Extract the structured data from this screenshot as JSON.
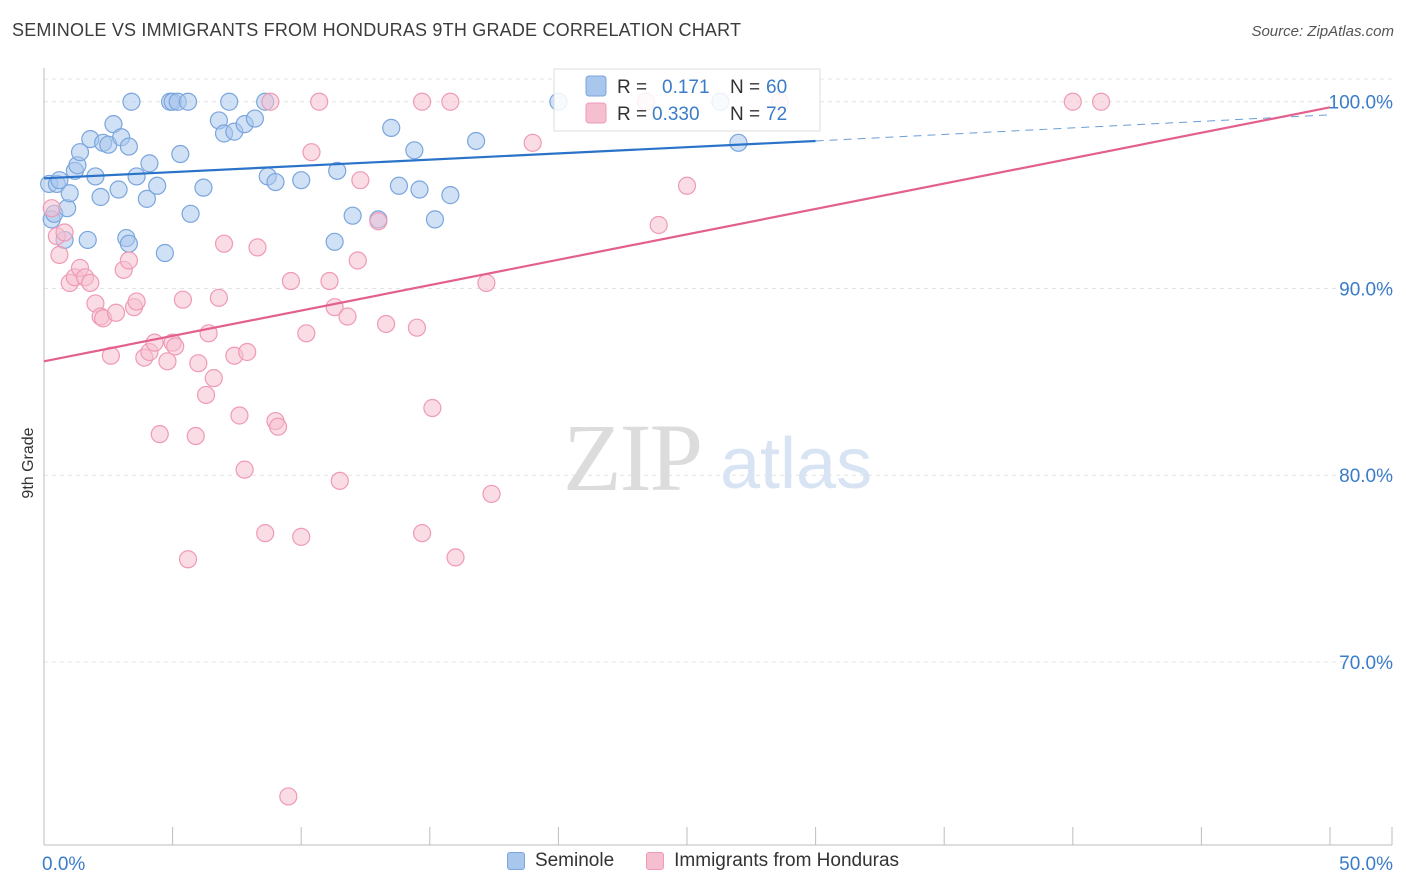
{
  "header": {
    "title": "SEMINOLE VS IMMIGRANTS FROM HONDURAS 9TH GRADE CORRELATION CHART",
    "source": "Source: ZipAtlas.com"
  },
  "watermark": {
    "zip": "ZIP",
    "atlas": "atlas"
  },
  "legend": {
    "r_label": "R =",
    "n_label": "N =",
    "entries": [
      {
        "r": "0.171",
        "n": "60"
      },
      {
        "r": "0.330",
        "n": "72"
      }
    ]
  },
  "bottom_legend": [
    "Seminole",
    "Immigrants from Honduras"
  ],
  "colors": {
    "seminole_fill": "#a9c6ec",
    "seminole_stroke": "#7aa6dd",
    "seminole_line": "#2a73c8",
    "honduras_fill": "#f6bfd0",
    "honduras_stroke": "#ef9ab6",
    "honduras_line": "#e3608d",
    "value_text": "#3b7cc9",
    "grid": "#e4e4e4",
    "axis": "#bdbdbd"
  },
  "chart_data": {
    "type": "scatter",
    "title": "SEMINOLE VS IMMIGRANTS FROM HONDURAS 9TH GRADE CORRELATION CHART",
    "xlabel": "",
    "ylabel": "9th Grade",
    "xlim": [
      0,
      50
    ],
    "ylim": [
      60.2,
      101.7
    ],
    "x_tick_labels": [
      "0.0%",
      "50.0%"
    ],
    "y_ticks": [
      70,
      80,
      90,
      100
    ],
    "y_tick_labels": [
      "70.0%",
      "80.0%",
      "90.0%",
      "100.0%"
    ],
    "legend_position": "top-center",
    "series": [
      {
        "name": "Seminole",
        "r": 0.171,
        "n": 60,
        "trend": {
          "x1": 0,
          "y1": 95.9,
          "x2": 30,
          "y2": 97.9,
          "dash_to_x": 50,
          "dash_to_y": 99.3
        },
        "points": [
          [
            0.2,
            95.6
          ],
          [
            0.3,
            93.7
          ],
          [
            0.4,
            94.0
          ],
          [
            0.5,
            95.6
          ],
          [
            0.6,
            95.8
          ],
          [
            0.8,
            92.6
          ],
          [
            0.9,
            94.3
          ],
          [
            1.0,
            95.1
          ],
          [
            1.2,
            96.3
          ],
          [
            1.3,
            96.6
          ],
          [
            1.4,
            97.3
          ],
          [
            1.7,
            92.6
          ],
          [
            1.8,
            98.0
          ],
          [
            2.0,
            96.0
          ],
          [
            2.2,
            94.9
          ],
          [
            2.3,
            97.8
          ],
          [
            2.5,
            97.7
          ],
          [
            2.7,
            98.8
          ],
          [
            2.9,
            95.3
          ],
          [
            3.0,
            98.1
          ],
          [
            3.2,
            92.7
          ],
          [
            3.3,
            92.4
          ],
          [
            3.3,
            97.6
          ],
          [
            3.4,
            100.0
          ],
          [
            3.6,
            96.0
          ],
          [
            4.0,
            94.8
          ],
          [
            4.1,
            96.7
          ],
          [
            4.4,
            95.5
          ],
          [
            4.7,
            91.9
          ],
          [
            4.9,
            100.0
          ],
          [
            5.0,
            100.0
          ],
          [
            5.2,
            100.0
          ],
          [
            5.3,
            97.2
          ],
          [
            5.6,
            100.0
          ],
          [
            5.7,
            94.0
          ],
          [
            6.2,
            95.4
          ],
          [
            6.8,
            99.0
          ],
          [
            7.0,
            98.3
          ],
          [
            7.2,
            100.0
          ],
          [
            7.4,
            98.4
          ],
          [
            7.8,
            98.8
          ],
          [
            8.2,
            99.1
          ],
          [
            8.6,
            100.0
          ],
          [
            8.7,
            96.0
          ],
          [
            9.0,
            95.7
          ],
          [
            10.0,
            95.8
          ],
          [
            11.3,
            92.5
          ],
          [
            11.4,
            96.3
          ],
          [
            12.0,
            93.9
          ],
          [
            13.0,
            93.7
          ],
          [
            13.5,
            98.6
          ],
          [
            13.8,
            95.5
          ],
          [
            14.4,
            97.4
          ],
          [
            14.6,
            95.3
          ],
          [
            15.2,
            93.7
          ],
          [
            15.8,
            95.0
          ],
          [
            16.8,
            97.9
          ],
          [
            20.0,
            100.0
          ],
          [
            26.3,
            100.0
          ],
          [
            27.0,
            97.8
          ]
        ]
      },
      {
        "name": "Immigrants from Honduras",
        "r": 0.33,
        "n": 72,
        "trend": {
          "x1": 0,
          "y1": 86.1,
          "x2": 50,
          "y2": 99.7
        },
        "points": [
          [
            0.3,
            94.3
          ],
          [
            0.5,
            92.8
          ],
          [
            0.6,
            91.8
          ],
          [
            0.8,
            93.0
          ],
          [
            1.0,
            90.3
          ],
          [
            1.2,
            90.6
          ],
          [
            1.4,
            91.1
          ],
          [
            1.6,
            90.6
          ],
          [
            1.8,
            90.3
          ],
          [
            2.0,
            89.2
          ],
          [
            2.2,
            88.5
          ],
          [
            2.3,
            88.4
          ],
          [
            2.6,
            86.4
          ],
          [
            2.8,
            88.7
          ],
          [
            3.1,
            91.0
          ],
          [
            3.3,
            91.5
          ],
          [
            3.5,
            89.0
          ],
          [
            3.6,
            89.3
          ],
          [
            3.9,
            86.3
          ],
          [
            4.1,
            86.6
          ],
          [
            4.3,
            87.1
          ],
          [
            4.5,
            82.2
          ],
          [
            4.8,
            86.1
          ],
          [
            5.0,
            87.1
          ],
          [
            5.1,
            86.9
          ],
          [
            5.4,
            89.4
          ],
          [
            5.6,
            75.5
          ],
          [
            5.9,
            82.1
          ],
          [
            6.0,
            86.0
          ],
          [
            6.3,
            84.3
          ],
          [
            6.4,
            87.6
          ],
          [
            6.6,
            85.2
          ],
          [
            6.8,
            89.5
          ],
          [
            7.0,
            92.4
          ],
          [
            7.4,
            86.4
          ],
          [
            7.6,
            83.2
          ],
          [
            7.8,
            80.3
          ],
          [
            7.9,
            86.6
          ],
          [
            8.3,
            92.2
          ],
          [
            8.6,
            76.9
          ],
          [
            8.8,
            100.0
          ],
          [
            9.0,
            82.9
          ],
          [
            9.1,
            82.6
          ],
          [
            9.5,
            62.8
          ],
          [
            9.6,
            90.4
          ],
          [
            10.0,
            76.7
          ],
          [
            10.2,
            87.6
          ],
          [
            10.4,
            97.3
          ],
          [
            10.7,
            100.0
          ],
          [
            11.1,
            90.4
          ],
          [
            11.3,
            89.0
          ],
          [
            11.5,
            79.7
          ],
          [
            11.8,
            88.5
          ],
          [
            12.2,
            91.5
          ],
          [
            12.3,
            95.8
          ],
          [
            13.0,
            93.6
          ],
          [
            13.3,
            88.1
          ],
          [
            14.5,
            87.9
          ],
          [
            14.7,
            76.9
          ],
          [
            14.7,
            100.0
          ],
          [
            15.1,
            83.6
          ],
          [
            15.8,
            100.0
          ],
          [
            16.0,
            75.6
          ],
          [
            17.2,
            90.3
          ],
          [
            17.4,
            79.0
          ],
          [
            19.0,
            97.8
          ],
          [
            23.4,
            100.0
          ],
          [
            23.9,
            93.4
          ],
          [
            25.0,
            95.5
          ],
          [
            28.6,
            100.0
          ],
          [
            40.0,
            100.0
          ],
          [
            41.1,
            100.0
          ]
        ]
      }
    ]
  }
}
